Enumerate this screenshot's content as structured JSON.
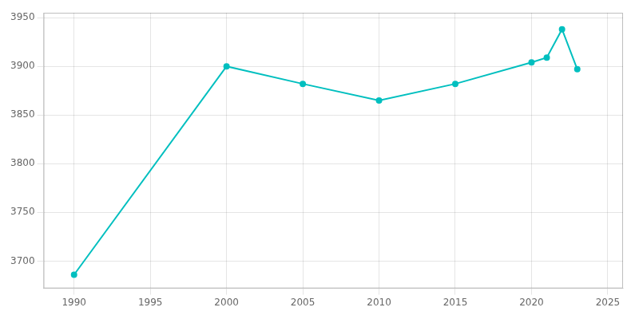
{
  "chart_data": {
    "type": "line",
    "x": [
      1990,
      2000,
      2005,
      2010,
      2015,
      2020,
      2021,
      2022,
      2023
    ],
    "values": [
      3686,
      3900,
      3882,
      3865,
      3882,
      3904,
      3909,
      3938,
      3897
    ],
    "color": "#00BFBF",
    "marker": "circle",
    "xlim": [
      1988,
      2026
    ],
    "ylim": [
      3672,
      3955
    ],
    "xticks": [
      1990,
      1995,
      2000,
      2005,
      2010,
      2015,
      2020,
      2025
    ],
    "yticks": [
      3700,
      3750,
      3800,
      3850,
      3900,
      3950
    ],
    "grid": true
  }
}
